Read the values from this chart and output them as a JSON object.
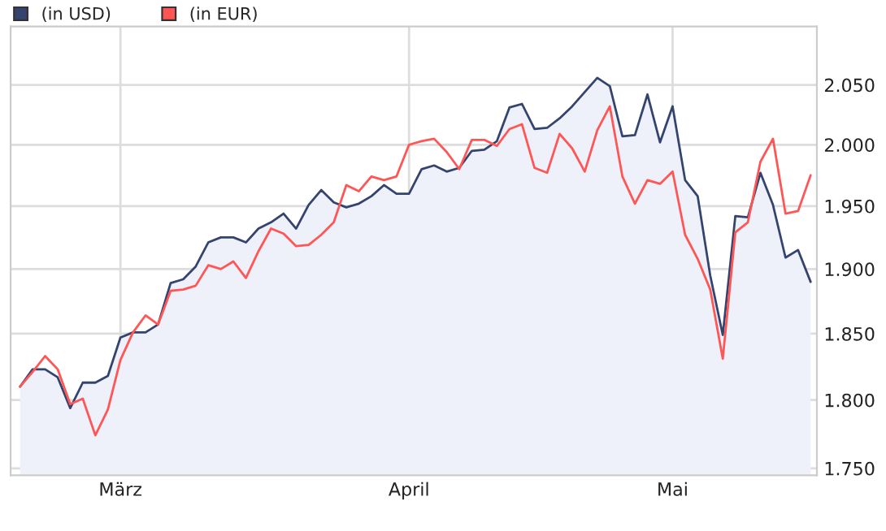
{
  "chart_data": {
    "type": "line",
    "categories": [
      null,
      null,
      null,
      null,
      null,
      null,
      null,
      null,
      "März",
      null,
      null,
      null,
      null,
      null,
      null,
      null,
      null,
      null,
      null,
      null,
      null,
      null,
      null,
      null,
      null,
      null,
      null,
      null,
      null,
      null,
      null,
      "April",
      null,
      null,
      null,
      null,
      null,
      null,
      null,
      null,
      null,
      null,
      null,
      null,
      null,
      null,
      null,
      null,
      null,
      null,
      null,
      null,
      "Mai",
      null,
      null,
      null,
      null,
      null,
      null,
      null,
      null,
      null,
      null,
      null
    ],
    "series": [
      {
        "name": "(in USD)",
        "type": "area",
        "color": "#34446f",
        "values": [
          1810,
          1823,
          1823,
          1817,
          1794,
          1813,
          1813,
          1818,
          1847,
          1851,
          1851,
          1857,
          1889,
          1892,
          1902,
          1921,
          1925,
          1925,
          1921,
          1932,
          1937,
          1944,
          1932,
          1951,
          1963,
          1953,
          1949,
          1952,
          1958,
          1967,
          1960,
          1960,
          1980,
          1983,
          1978,
          1981,
          1995,
          1996,
          2003,
          2031,
          2034,
          2013,
          2014,
          2022,
          2032,
          2044,
          2056,
          2049,
          2007,
          2008,
          2042,
          2002,
          2032,
          1971,
          1958,
          1895,
          1849,
          1942,
          1941,
          1977,
          1951,
          1909,
          1915,
          1890
        ]
      },
      {
        "name": "(in EUR)",
        "color": "#ff5555",
        "values": [
          1810,
          1821,
          1833,
          1823,
          1797,
          1801,
          1774,
          1793,
          1830,
          1851,
          1864,
          1857,
          1883,
          1884,
          1887,
          1903,
          1900,
          1906,
          1893,
          1914,
          1932,
          1928,
          1918,
          1919,
          1927,
          1937,
          1967,
          1962,
          1974,
          1971,
          1974,
          2000,
          2003,
          2005,
          1994,
          1980,
          2004,
          2004,
          1999,
          2013,
          2017,
          1981,
          1977,
          2009,
          1997,
          1978,
          2012,
          2032,
          1974,
          1952,
          1971,
          1968,
          1978,
          1927,
          1908,
          1884,
          1831,
          1929,
          1937,
          1986,
          2005,
          1944,
          1946,
          1975
        ]
      }
    ],
    "log": "y",
    "ylim": [
      1745,
      2100
    ],
    "yticks": [
      {
        "value": 1750,
        "label": "1.750"
      },
      {
        "value": 1800,
        "label": "1.800"
      },
      {
        "value": 1850,
        "label": "1.850"
      },
      {
        "value": 1900,
        "label": "1.900"
      },
      {
        "value": 1950,
        "label": "1.950"
      },
      {
        "value": 2000,
        "label": "2.000"
      },
      {
        "value": 2050,
        "label": "2.050"
      }
    ],
    "grid": true,
    "legend": "top left",
    "marker": "none",
    "line_style": "solid"
  }
}
